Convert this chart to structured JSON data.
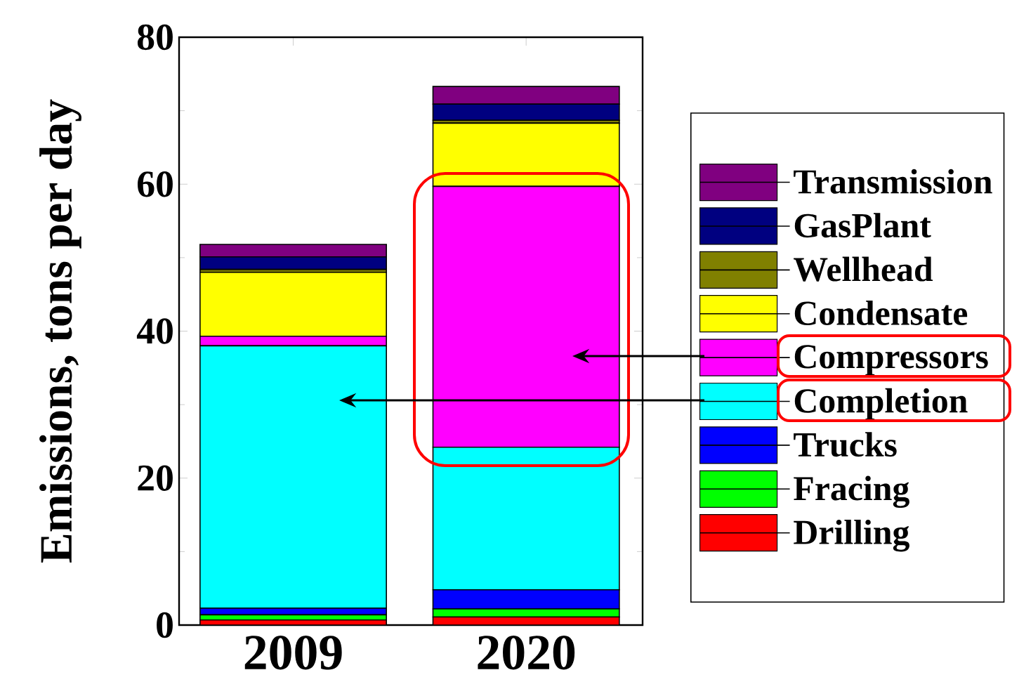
{
  "chart_data": {
    "type": "bar",
    "stacked": true,
    "ylabel": "Emissions, tons per day",
    "categories": [
      "2009",
      "2020"
    ],
    "series": [
      {
        "name": "Drilling",
        "color": "#ff0000",
        "values": [
          0.7,
          1.1
        ]
      },
      {
        "name": "Fracing",
        "color": "#00ff00",
        "values": [
          0.7,
          1.1
        ]
      },
      {
        "name": "Trucks",
        "color": "#0000ff",
        "values": [
          0.9,
          2.6
        ]
      },
      {
        "name": "Completion",
        "color": "#00ffff",
        "values": [
          35.7,
          19.4
        ]
      },
      {
        "name": "Compressors",
        "color": "#ff00ff",
        "values": [
          1.3,
          35.5
        ]
      },
      {
        "name": "Condensate",
        "color": "#ffff00",
        "values": [
          8.7,
          8.6
        ]
      },
      {
        "name": "Wellhead",
        "color": "#808000",
        "values": [
          0.4,
          0.4
        ]
      },
      {
        "name": "GasPlant",
        "color": "#000080",
        "values": [
          1.7,
          2.2
        ]
      },
      {
        "name": "Transmission",
        "color": "#800080",
        "values": [
          1.7,
          2.4
        ]
      }
    ],
    "ylim": [
      0,
      80
    ],
    "yticks": [
      0,
      20,
      40,
      60,
      80
    ],
    "legend": "right",
    "grid": false
  }
}
